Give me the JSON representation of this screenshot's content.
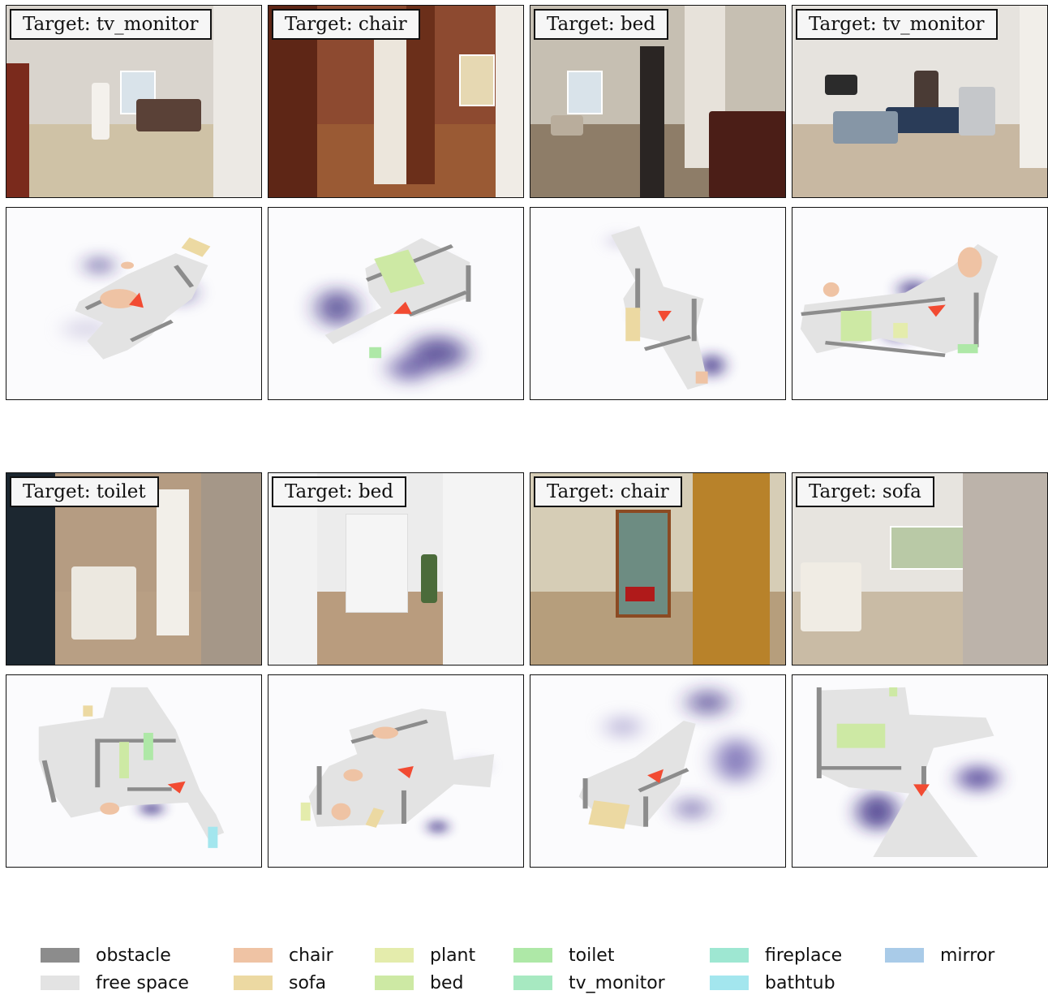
{
  "panels": [
    {
      "target": "Target: tv_monitor"
    },
    {
      "target": "Target: chair"
    },
    {
      "target": "Target: bed"
    },
    {
      "target": "Target: tv_monitor"
    },
    {
      "target": "Target: toilet"
    },
    {
      "target": "Target: bed"
    },
    {
      "target": "Target: chair"
    },
    {
      "target": "Target: sofa"
    }
  ],
  "legend": [
    {
      "label": "obstacle",
      "color": "#8c8c8c"
    },
    {
      "label": "free space",
      "color": "#e3e3e3"
    },
    {
      "label": "chair",
      "color": "#efc3a4"
    },
    {
      "label": "sofa",
      "color": "#ecd9a2"
    },
    {
      "label": "plant",
      "color": "#e4ecac"
    },
    {
      "label": "bed",
      "color": "#cde9a4"
    },
    {
      "label": "toilet",
      "color": "#aee8a7"
    },
    {
      "label": "tv_monitor",
      "color": "#a7e9c1"
    },
    {
      "label": "fireplace",
      "color": "#9ee7d2"
    },
    {
      "label": "bathtub",
      "color": "#a3e6ee"
    },
    {
      "label": "mirror",
      "color": "#a9cbe8"
    }
  ],
  "colors": {
    "agent": "#f24b32",
    "heat": "#2c1c7a"
  }
}
